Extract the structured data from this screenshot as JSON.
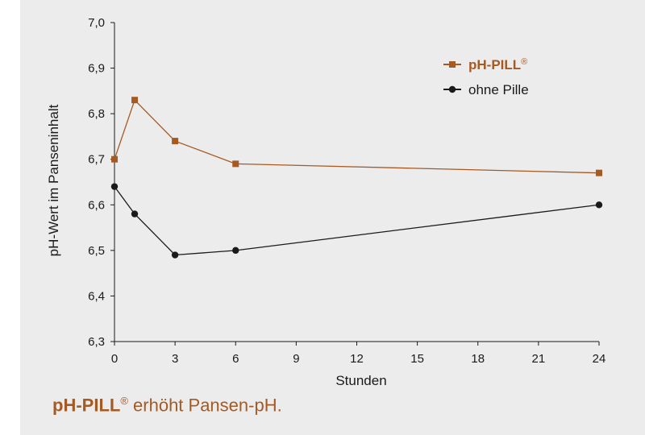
{
  "chart_data": {
    "type": "line",
    "xlabel": "Stunden",
    "ylabel": "pH-Wert im Panseninhalt",
    "x_ticks": [
      "0",
      "3",
      "6",
      "9",
      "12",
      "15",
      "18",
      "21",
      "24"
    ],
    "y_ticks": [
      "6,3",
      "6,4",
      "6,5",
      "6,6",
      "6,7",
      "6,8",
      "6,9",
      "7,0"
    ],
    "xlim": [
      0,
      24
    ],
    "ylim": [
      6.3,
      7.0
    ],
    "grid": false,
    "legend_position": "top-right",
    "series": [
      {
        "name": "pH-PILL",
        "name_mark": "®",
        "marker": "square",
        "color": "#a55a24",
        "x": [
          0,
          1,
          3,
          6,
          24
        ],
        "y": [
          6.7,
          6.83,
          6.74,
          6.69,
          6.67
        ]
      },
      {
        "name": "ohne Pille",
        "marker": "circle",
        "color": "#1a1a1a",
        "x": [
          0,
          1,
          3,
          6,
          24
        ],
        "y": [
          6.64,
          6.58,
          6.49,
          6.5,
          6.6
        ]
      }
    ]
  },
  "caption": {
    "brand": "pH-PILL",
    "mark": "®",
    "text": " erhöht Pansen-pH."
  },
  "colors": {
    "background": "#ececec",
    "accent": "#a55a24",
    "dark": "#1a1a1a"
  }
}
